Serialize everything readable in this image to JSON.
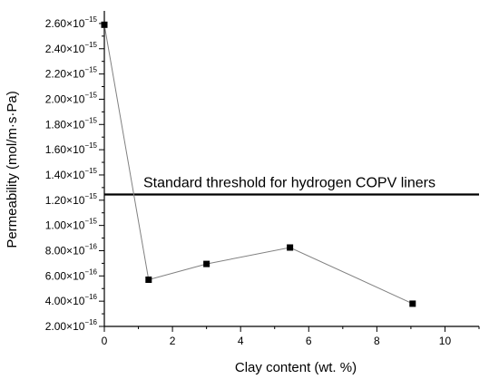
{
  "chart_data": {
    "type": "scatter",
    "xlabel": "Clay content (wt. %)",
    "ylabel": "Permeability (mol/m·s·Pa)",
    "xlim": [
      0,
      11
    ],
    "ylim": [
      2e-16,
      2.7e-15
    ],
    "x_ticks": [
      0,
      2,
      4,
      6,
      8,
      10
    ],
    "x_tick_labels": [
      "0",
      "2",
      "4",
      "6",
      "8",
      "10"
    ],
    "y_ticks": [
      2e-16,
      4e-16,
      6e-16,
      8e-16,
      1e-15,
      1.2e-15,
      1.4e-15,
      1.6e-15,
      1.8e-15,
      2e-15,
      2.2e-15,
      2.4e-15,
      2.6e-15
    ],
    "y_tick_labels": [
      {
        "mantissa": "2.00×10",
        "exp": "−16"
      },
      {
        "mantissa": "4.00×10",
        "exp": "−16"
      },
      {
        "mantissa": "6.00×10",
        "exp": "−16"
      },
      {
        "mantissa": "8.00×10",
        "exp": "−16"
      },
      {
        "mantissa": "1.00×10",
        "exp": "−15"
      },
      {
        "mantissa": "1.20×10",
        "exp": "−15"
      },
      {
        "mantissa": "1.40×10",
        "exp": "−15"
      },
      {
        "mantissa": "1.60×10",
        "exp": "−15"
      },
      {
        "mantissa": "1.80×10",
        "exp": "−15"
      },
      {
        "mantissa": "2.00×10",
        "exp": "−15"
      },
      {
        "mantissa": "2.20×10",
        "exp": "−15"
      },
      {
        "mantissa": "2.40×10",
        "exp": "−15"
      },
      {
        "mantissa": "2.60×10",
        "exp": "−15"
      }
    ],
    "series": [
      {
        "x": [
          0,
          1.3,
          3.0,
          5.45,
          9.05
        ],
        "y": [
          2.59e-15,
          5.7e-16,
          6.95e-16,
          8.25e-16,
          3.8e-16
        ],
        "color": "#000000",
        "line_color": "#808080",
        "marker": "square"
      }
    ],
    "threshold": {
      "y": 1.245e-15,
      "label": "Standard threshold for hydrogen COPV liners",
      "color": "#000000"
    },
    "grid": false
  }
}
